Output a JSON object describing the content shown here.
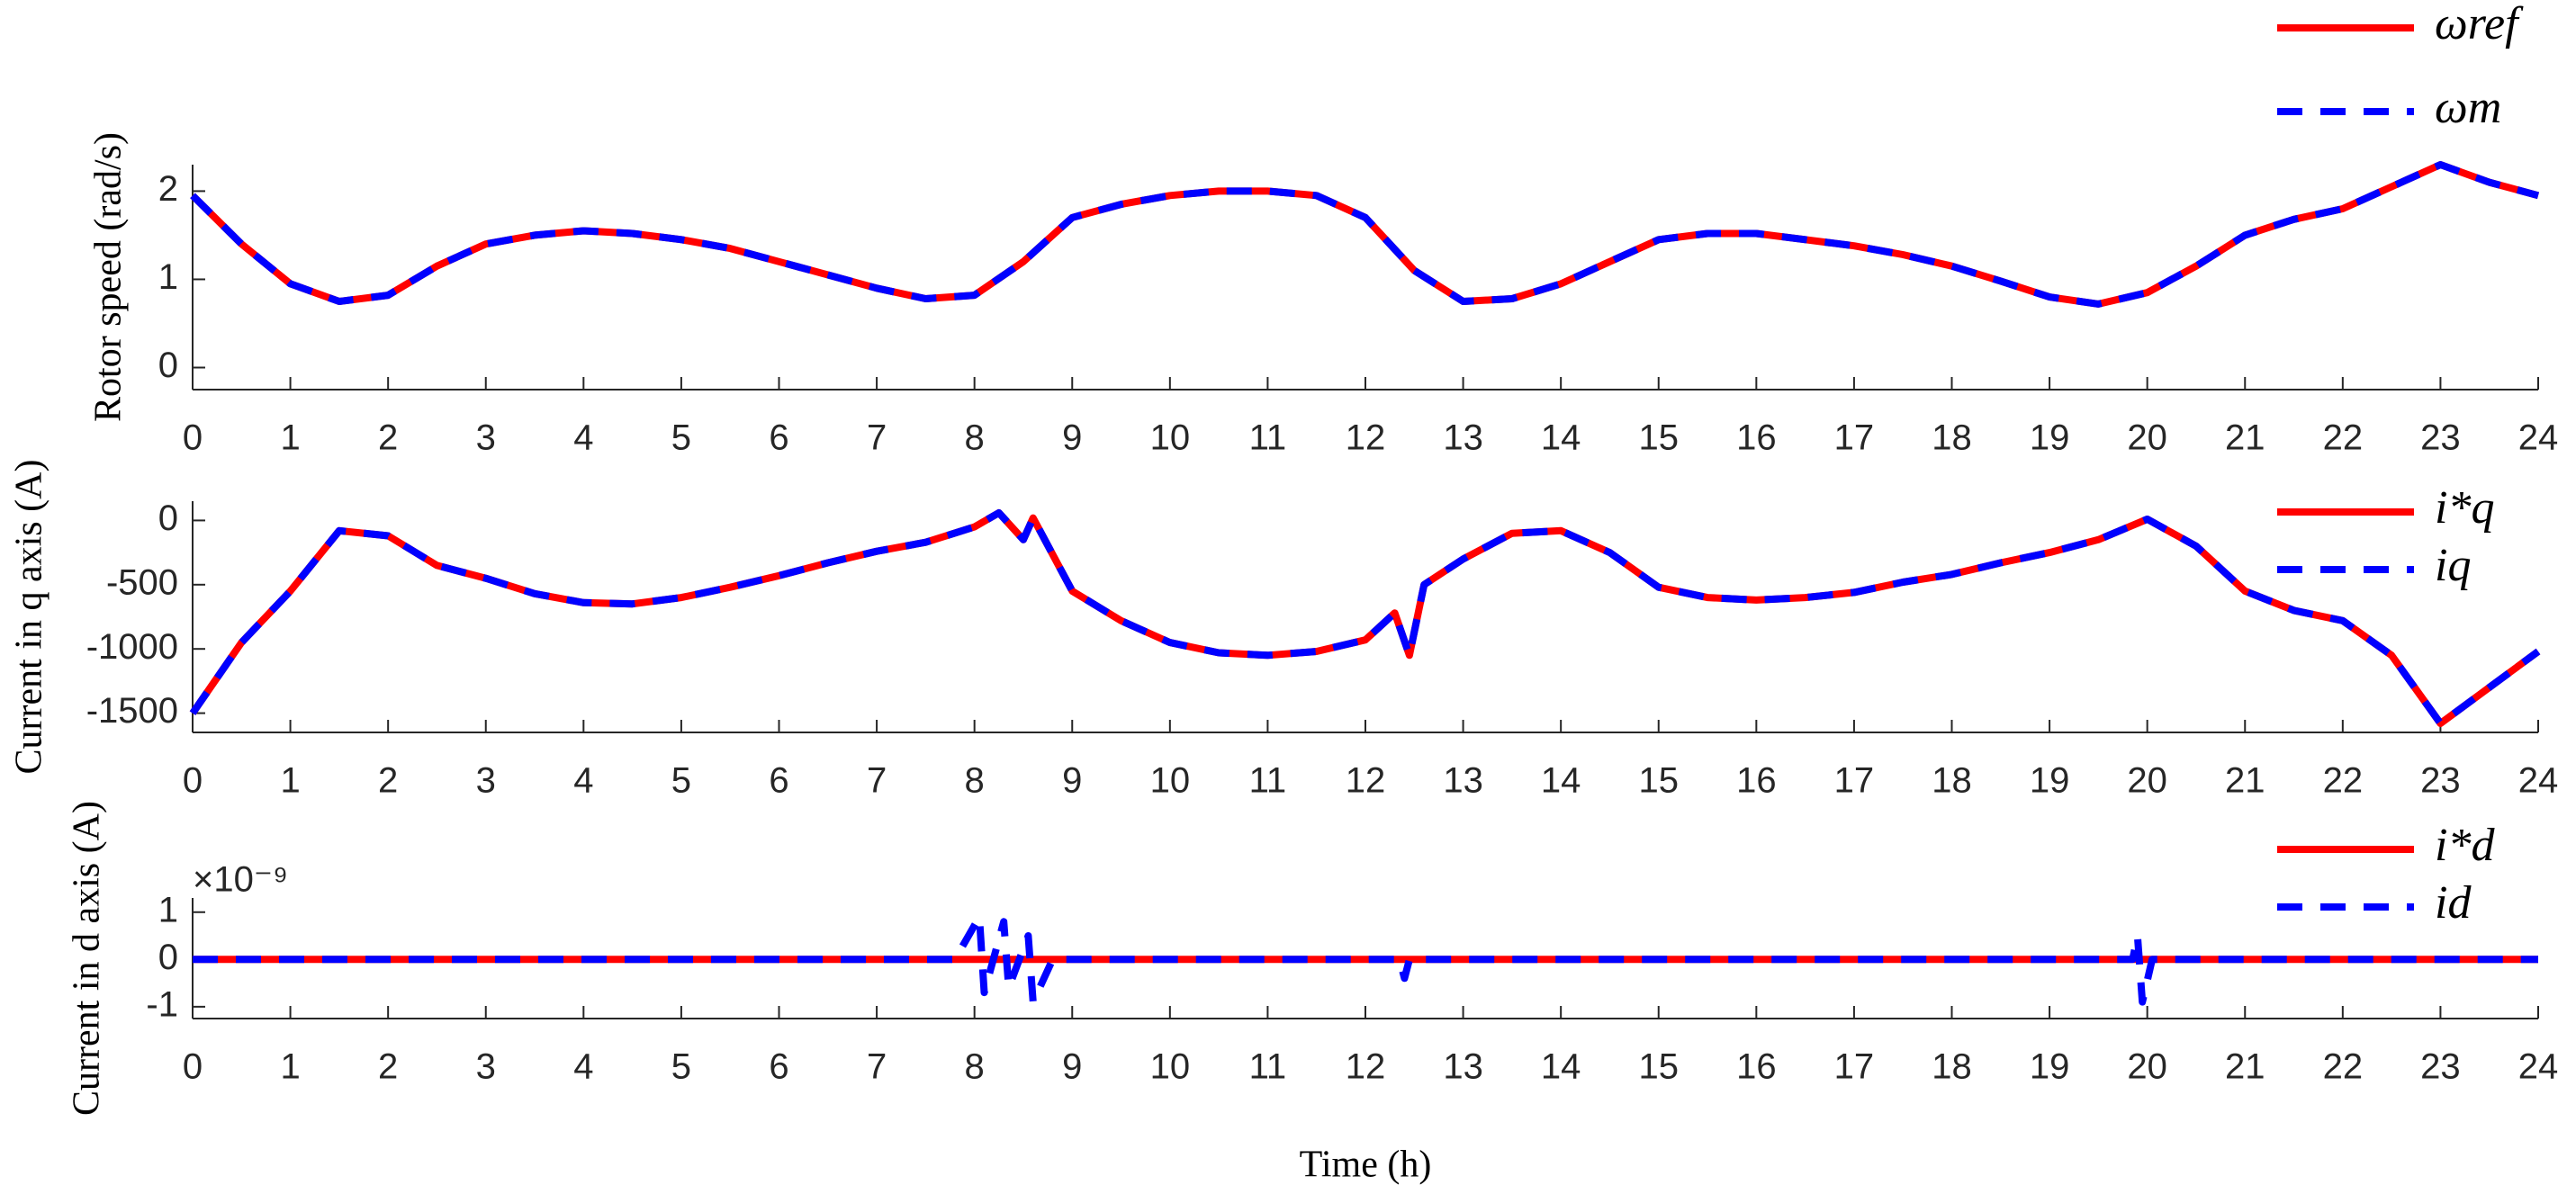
{
  "chart_data": [
    {
      "type": "line",
      "ylabel": "Rotor speed (rad/s)",
      "x": [
        0,
        0.5,
        1,
        1.5,
        2,
        2.5,
        3,
        3.5,
        4,
        4.5,
        5,
        5.5,
        6,
        6.5,
        7,
        7.5,
        8,
        8.5,
        9,
        9.5,
        10,
        10.5,
        11,
        11.5,
        12,
        12.5,
        13,
        13.5,
        14,
        14.5,
        15,
        15.5,
        16,
        16.5,
        17,
        17.5,
        18,
        18.5,
        19,
        19.5,
        20,
        20.5,
        21,
        21.5,
        22,
        22.5,
        23,
        23.5,
        24
      ],
      "series": [
        {
          "name": "ωref",
          "color": "#ff0000",
          "style": "solid",
          "values": [
            1.95,
            1.4,
            0.95,
            0.75,
            0.82,
            1.15,
            1.4,
            1.5,
            1.55,
            1.52,
            1.45,
            1.35,
            1.2,
            1.05,
            0.9,
            0.78,
            0.82,
            1.2,
            1.7,
            1.85,
            1.95,
            2.0,
            2.0,
            1.95,
            1.7,
            1.1,
            0.75,
            0.78,
            0.95,
            1.2,
            1.45,
            1.52,
            1.52,
            1.45,
            1.38,
            1.28,
            1.15,
            0.98,
            0.8,
            0.72,
            0.85,
            1.15,
            1.5,
            1.68,
            1.8,
            2.05,
            2.3,
            2.1,
            1.95
          ]
        },
        {
          "name": "ωm",
          "color": "#0000ff",
          "style": "dashed",
          "values": [
            1.95,
            1.4,
            0.95,
            0.75,
            0.82,
            1.15,
            1.4,
            1.5,
            1.55,
            1.52,
            1.45,
            1.35,
            1.2,
            1.05,
            0.9,
            0.78,
            0.82,
            1.2,
            1.7,
            1.85,
            1.95,
            2.0,
            2.0,
            1.95,
            1.7,
            1.1,
            0.75,
            0.78,
            0.95,
            1.2,
            1.45,
            1.52,
            1.52,
            1.45,
            1.38,
            1.28,
            1.15,
            0.98,
            0.8,
            0.72,
            0.85,
            1.15,
            1.5,
            1.68,
            1.8,
            2.05,
            2.3,
            2.1,
            1.95
          ]
        }
      ],
      "xlim": [
        0,
        24
      ],
      "ylim": [
        -0.25,
        2.3
      ],
      "xticks": [
        0,
        1,
        2,
        3,
        4,
        5,
        6,
        7,
        8,
        9,
        10,
        11,
        12,
        13,
        14,
        15,
        16,
        17,
        18,
        19,
        20,
        21,
        22,
        23,
        24
      ],
      "yticks": [
        0,
        1,
        2
      ],
      "legend": "upper right"
    },
    {
      "type": "line",
      "ylabel": "Current in q axis (A)",
      "x": [
        0,
        0.5,
        1,
        1.5,
        2,
        2.5,
        3,
        3.5,
        4,
        4.5,
        5,
        5.5,
        6,
        6.5,
        7,
        7.5,
        8,
        8.25,
        8.5,
        8.6,
        9,
        9.5,
        10,
        10.5,
        11,
        11.5,
        12,
        12.3,
        12.45,
        12.6,
        13,
        13.5,
        14,
        14.5,
        15,
        15.5,
        16,
        16.5,
        17,
        17.5,
        18,
        18.5,
        19,
        19.5,
        20,
        20.5,
        21,
        21.5,
        22,
        22.5,
        23,
        23.5,
        24
      ],
      "series": [
        {
          "name": "i*q",
          "color": "#ff0000",
          "style": "solid",
          "values": [
            -1500,
            -950,
            -550,
            -80,
            -120,
            -350,
            -450,
            -570,
            -640,
            -650,
            -600,
            -520,
            -430,
            -330,
            -240,
            -170,
            -50,
            60,
            -150,
            20,
            -550,
            -780,
            -950,
            -1030,
            -1050,
            -1020,
            -930,
            -720,
            -1050,
            -500,
            -300,
            -100,
            -80,
            -250,
            -520,
            -600,
            -620,
            -600,
            -560,
            -480,
            -420,
            -330,
            -250,
            -150,
            10,
            -200,
            -550,
            -700,
            -780,
            -1050,
            -1580,
            -1300,
            -1020
          ]
        },
        {
          "name": "iq",
          "color": "#0000ff",
          "style": "dashed",
          "values": [
            -1500,
            -950,
            -550,
            -80,
            -120,
            -350,
            -450,
            -570,
            -640,
            -650,
            -600,
            -520,
            -430,
            -330,
            -240,
            -170,
            -50,
            60,
            -150,
            20,
            -550,
            -780,
            -950,
            -1030,
            -1050,
            -1020,
            -930,
            -720,
            -1050,
            -500,
            -300,
            -100,
            -80,
            -250,
            -520,
            -600,
            -620,
            -600,
            -560,
            -480,
            -420,
            -330,
            -250,
            -150,
            10,
            -200,
            -550,
            -700,
            -780,
            -1050,
            -1580,
            -1300,
            -1020
          ]
        }
      ],
      "xlim": [
        0,
        24
      ],
      "ylim": [
        -1650,
        150
      ],
      "xticks": [
        0,
        1,
        2,
        3,
        4,
        5,
        6,
        7,
        8,
        9,
        10,
        11,
        12,
        13,
        14,
        15,
        16,
        17,
        18,
        19,
        20,
        21,
        22,
        23,
        24
      ],
      "yticks": [
        -1500,
        -1000,
        -500,
        0
      ],
      "legend": "upper right"
    },
    {
      "type": "line",
      "ylabel": "Current in d axis (A)",
      "xlabel": "Time (h)",
      "y_multiplier_label": "×10⁻⁹",
      "x": [
        0,
        7.8,
        8.05,
        8.1,
        8.3,
        8.35,
        8.55,
        8.6,
        8.8,
        12.35,
        12.4,
        12.45,
        19.85,
        19.9,
        19.95,
        20.05,
        24
      ],
      "series": [
        {
          "name": "i*d",
          "color": "#ff0000",
          "style": "solid",
          "values": [
            0,
            0,
            0,
            0,
            0,
            0,
            0,
            0,
            0,
            0,
            0,
            0,
            0,
            0,
            0,
            0,
            0
          ]
        },
        {
          "name": "id",
          "color": "#0000ff",
          "style": "dashed",
          "values": [
            0,
            0,
            0.9,
            -0.7,
            0.8,
            -0.6,
            0.5,
            -0.9,
            0,
            0,
            -0.4,
            0,
            0,
            0.5,
            -0.9,
            0,
            0
          ]
        }
      ],
      "xlim": [
        0,
        24
      ],
      "ylim": [
        -1.25,
        1.3
      ],
      "xticks": [
        0,
        1,
        2,
        3,
        4,
        5,
        6,
        7,
        8,
        9,
        10,
        11,
        12,
        13,
        14,
        15,
        16,
        17,
        18,
        19,
        20,
        21,
        22,
        23,
        24
      ],
      "yticks": [
        -1,
        0,
        1
      ],
      "legend": "upper right"
    }
  ]
}
